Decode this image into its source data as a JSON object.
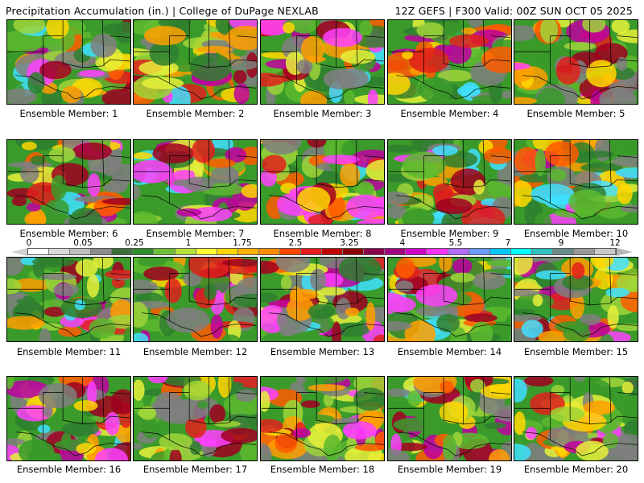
{
  "header": {
    "left": "Precipitation Accumulation (in.) | College of DuPage NEXLAB",
    "right": "12Z GEFS | F300 Valid: 00Z SUN OCT 05 2025"
  },
  "colorbar": {
    "swatches": [
      "#ffffff",
      "#d9d9d9",
      "#bdbdbd",
      "#8c8c8c",
      "#3d6e3d",
      "#2e8b2e",
      "#6fbf3a",
      "#b6e03a",
      "#ffff33",
      "#ffd700",
      "#ffb000",
      "#ff8c00",
      "#ff4500",
      "#e41a1c",
      "#c00000",
      "#8b0000",
      "#8b004b",
      "#a00080",
      "#d000c8",
      "#ff33ff",
      "#b36bff",
      "#6a9bff",
      "#00c8ff",
      "#00ffff",
      "#30c0c0",
      "#6a8a8a",
      "#9a9a9a",
      "#c8c8c8"
    ],
    "labels": [
      "0",
      "0.05",
      "0.25",
      "1",
      "1.75",
      "2.5",
      "3.25",
      "4",
      "5.5",
      "7",
      "9",
      "12"
    ]
  },
  "members": [
    {
      "caption": "Ensemble Member: 1",
      "seed": 1
    },
    {
      "caption": "Ensemble Member: 2",
      "seed": 2
    },
    {
      "caption": "Ensemble Member: 3",
      "seed": 3
    },
    {
      "caption": "Ensemble Member: 4",
      "seed": 4
    },
    {
      "caption": "Ensemble Member: 5",
      "seed": 5
    },
    {
      "caption": "Ensemble Member: 6",
      "seed": 6
    },
    {
      "caption": "Ensemble Member: 7",
      "seed": 7
    },
    {
      "caption": "Ensemble Member: 8",
      "seed": 8
    },
    {
      "caption": "Ensemble Member: 9",
      "seed": 9
    },
    {
      "caption": "Ensemble Member: 10",
      "seed": 10
    },
    {
      "caption": "Ensemble Member: 11",
      "seed": 11
    },
    {
      "caption": "Ensemble Member: 12",
      "seed": 12
    },
    {
      "caption": "Ensemble Member: 13",
      "seed": 13
    },
    {
      "caption": "Ensemble Member: 14",
      "seed": 14
    },
    {
      "caption": "Ensemble Member: 15",
      "seed": 15
    },
    {
      "caption": "Ensemble Member: 16",
      "seed": 16
    },
    {
      "caption": "Ensemble Member: 17",
      "seed": 17
    },
    {
      "caption": "Ensemble Member: 18",
      "seed": 18
    },
    {
      "caption": "Ensemble Member: 19",
      "seed": 19
    },
    {
      "caption": "Ensemble Member: 20",
      "seed": 20
    }
  ]
}
